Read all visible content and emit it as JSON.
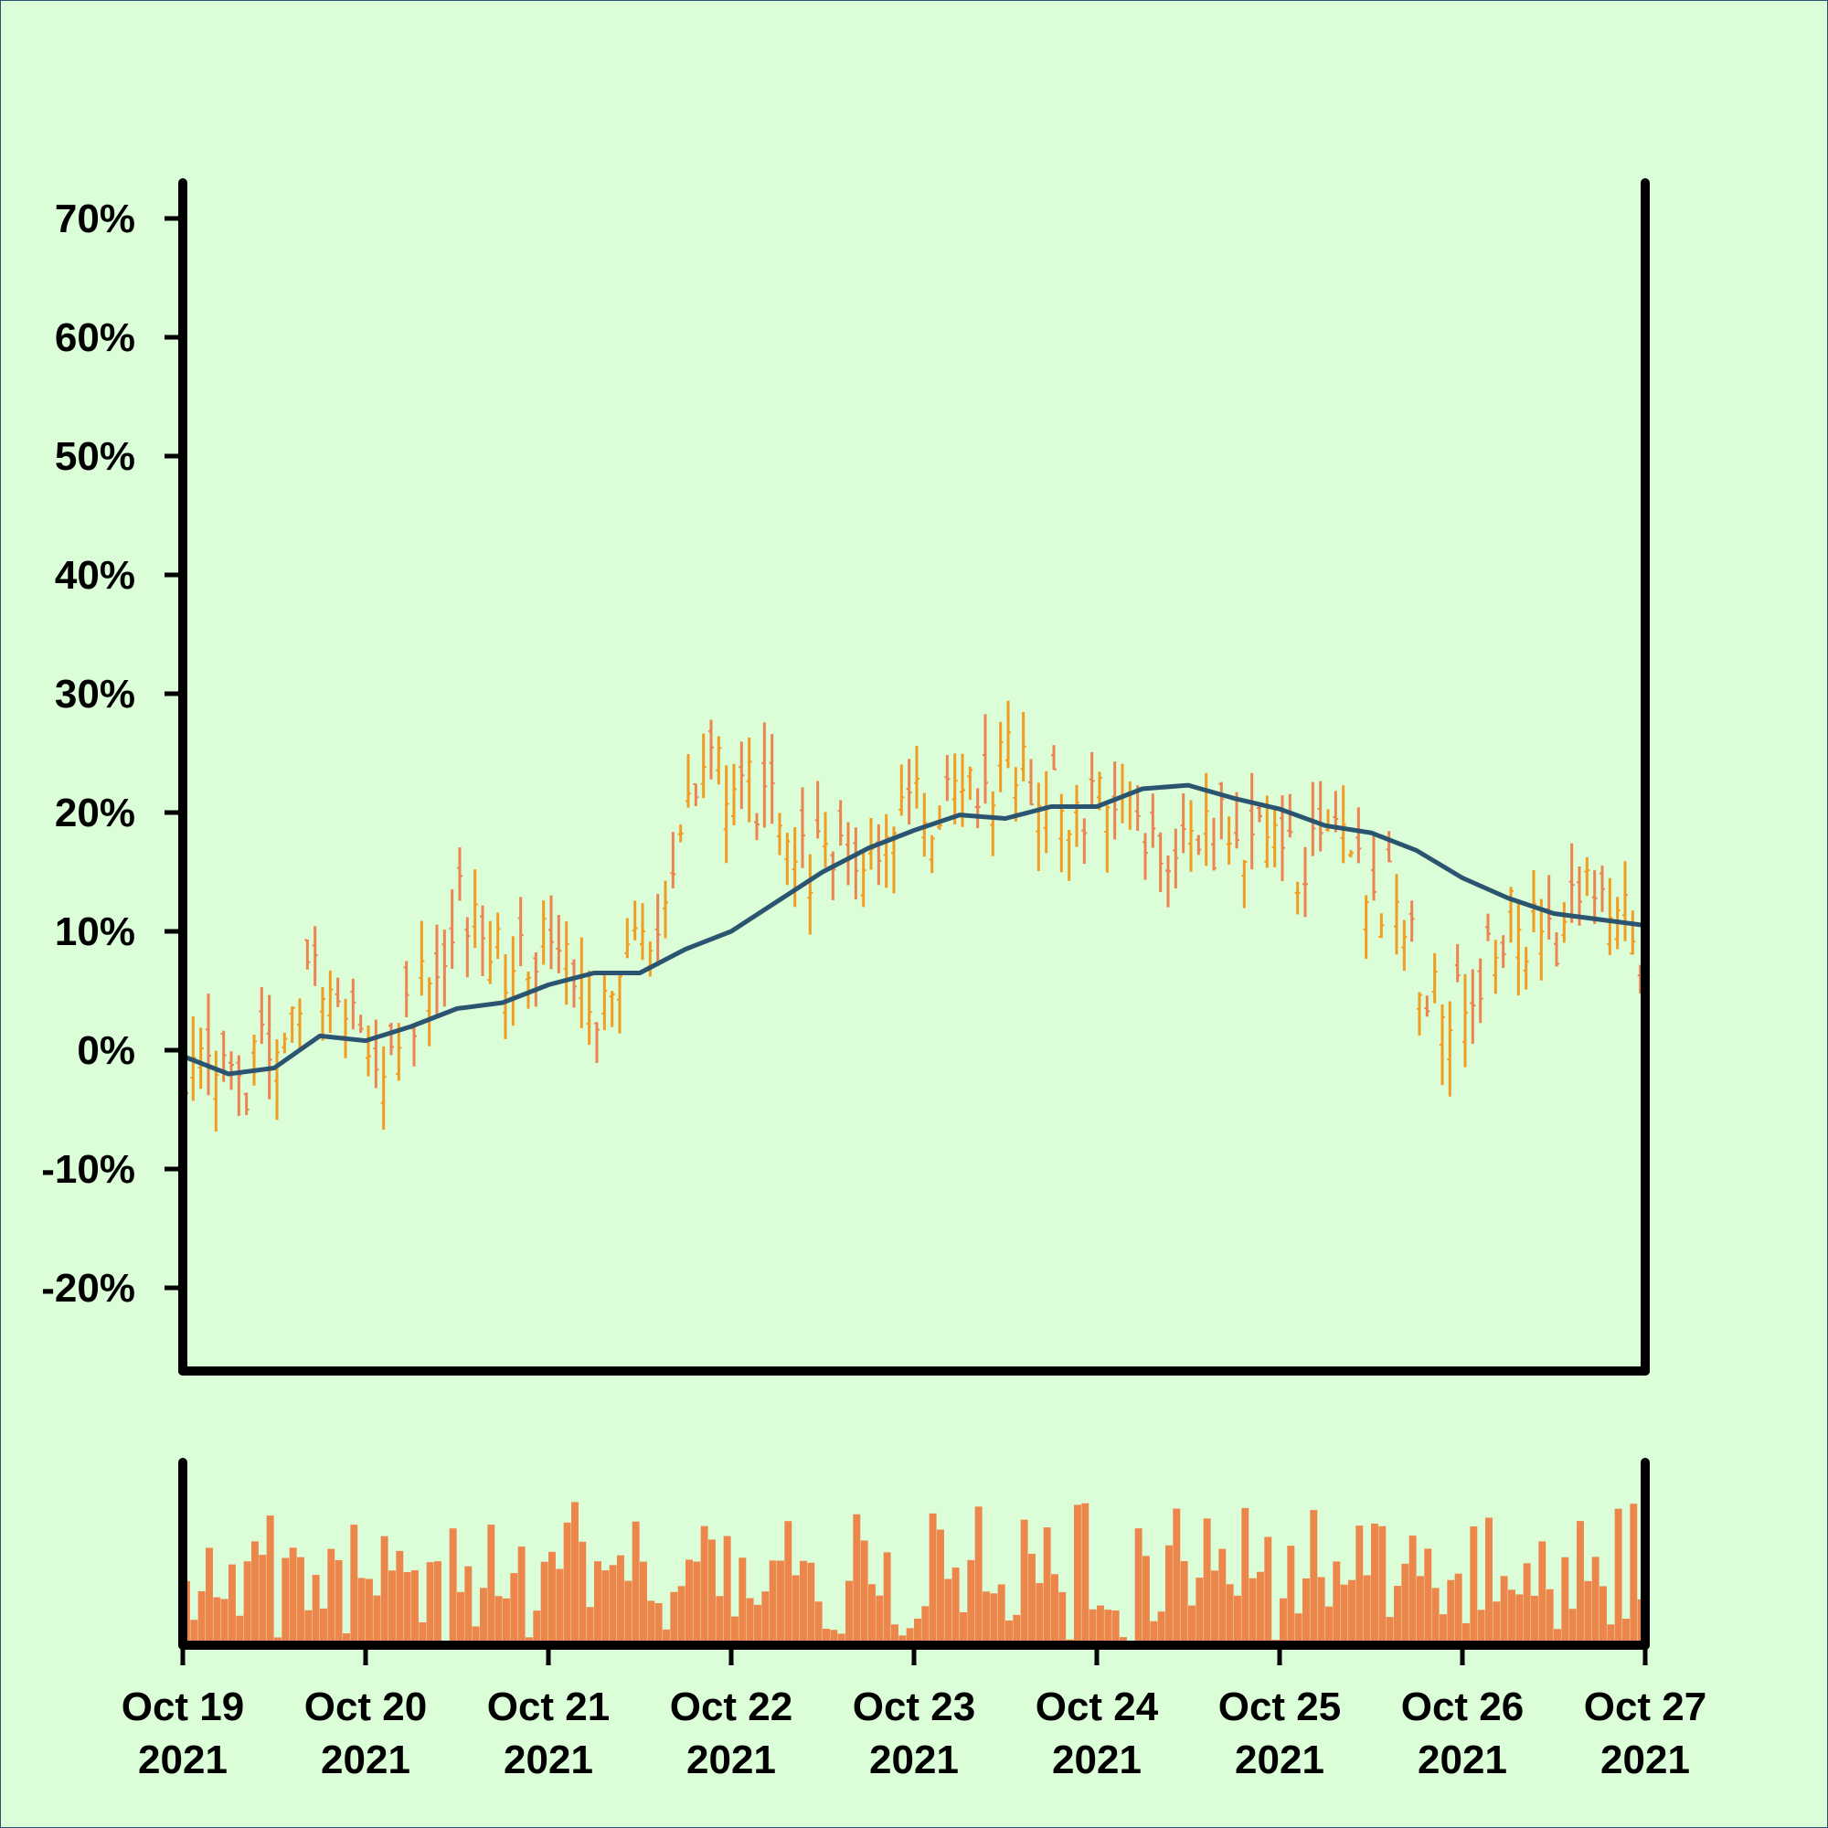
{
  "chart_data": {
    "type": "line",
    "title": "",
    "xlabel": "",
    "ylabel": "",
    "x_ticks": [
      {
        "date": "2021-10-19",
        "label": [
          "Oct 19",
          "2021"
        ]
      },
      {
        "date": "2021-10-20",
        "label": [
          "Oct 20",
          "2021"
        ]
      },
      {
        "date": "2021-10-21",
        "label": [
          "Oct 21",
          "2021"
        ]
      },
      {
        "date": "2021-10-22",
        "label": [
          "Oct 22",
          "2021"
        ]
      },
      {
        "date": "2021-10-23",
        "label": [
          "Oct 23",
          "2021"
        ]
      },
      {
        "date": "2021-10-24",
        "label": [
          "Oct 24",
          "2021"
        ]
      },
      {
        "date": "2021-10-25",
        "label": [
          "Oct 25",
          "2021"
        ]
      },
      {
        "date": "2021-10-26",
        "label": [
          "Oct 26",
          "2021"
        ]
      },
      {
        "date": "2021-10-27",
        "label": [
          "Oct 27",
          "2021"
        ]
      }
    ],
    "xlim": [
      "2021-10-19",
      "2021-10-27"
    ],
    "y_ticks": [
      {
        "value": 70,
        "label": "70%"
      },
      {
        "value": 60,
        "label": "60%"
      },
      {
        "value": 50,
        "label": "50%"
      },
      {
        "value": 40,
        "label": "40%"
      },
      {
        "value": 30,
        "label": "30%"
      },
      {
        "value": 20,
        "label": "20%"
      },
      {
        "value": 10,
        "label": "10%"
      },
      {
        "value": 0,
        "label": "0%"
      },
      {
        "value": -10,
        "label": "-10%"
      },
      {
        "value": -20,
        "label": "-20%"
      }
    ],
    "ylim": [
      -27,
      73
    ],
    "grid": false,
    "ohlc_series": {
      "interval_hours": 1,
      "colors": {
        "up": "#f29d22",
        "down": "#ec8450"
      },
      "anchors": [
        {
          "time": "2021-10-19T00:00",
          "value": -1
        },
        {
          "time": "2021-10-19T08:00",
          "value": -2
        },
        {
          "time": "2021-10-19T16:00",
          "value": 5
        },
        {
          "time": "2021-10-19T20:00",
          "value": 6
        },
        {
          "time": "2021-10-20T02:00",
          "value": -2
        },
        {
          "time": "2021-10-20T08:00",
          "value": 6
        },
        {
          "time": "2021-10-20T12:00",
          "value": 13
        },
        {
          "time": "2021-10-20T18:00",
          "value": 7
        },
        {
          "time": "2021-10-21T00:00",
          "value": 10
        },
        {
          "time": "2021-10-21T06:00",
          "value": 3
        },
        {
          "time": "2021-10-21T10:00",
          "value": 11
        },
        {
          "time": "2021-10-21T14:00",
          "value": 10
        },
        {
          "time": "2021-10-21T20:00",
          "value": 23
        },
        {
          "time": "2021-10-22T04:00",
          "value": 21
        },
        {
          "time": "2021-10-22T09:00",
          "value": 16
        },
        {
          "time": "2021-10-22T16:00",
          "value": 17
        },
        {
          "time": "2021-10-22T21:00",
          "value": 20
        },
        {
          "time": "2021-10-23T04:00",
          "value": 20
        },
        {
          "time": "2021-10-23T12:00",
          "value": 24
        },
        {
          "time": "2021-10-23T18:00",
          "value": 21
        },
        {
          "time": "2021-10-24T00:00",
          "value": 20
        },
        {
          "time": "2021-10-24T05:00",
          "value": 19
        },
        {
          "time": "2021-10-24T12:00",
          "value": 17
        },
        {
          "time": "2021-10-24T18:00",
          "value": 19
        },
        {
          "time": "2021-10-25T02:00",
          "value": 15
        },
        {
          "time": "2021-10-25T06:00",
          "value": 17
        },
        {
          "time": "2021-10-25T14:00",
          "value": 13
        },
        {
          "time": "2021-10-25T20:00",
          "value": 4
        },
        {
          "time": "2021-10-26T02:00",
          "value": 6
        },
        {
          "time": "2021-10-26T06:00",
          "value": 11
        },
        {
          "time": "2021-10-26T12:00",
          "value": 9
        },
        {
          "time": "2021-10-26T16:00",
          "value": 14
        },
        {
          "time": "2021-10-27T00:00",
          "value": 8
        }
      ]
    },
    "moving_average": {
      "color": "#2b5470",
      "points": [
        {
          "time": "2021-10-19T00:00",
          "value": -0.5
        },
        {
          "time": "2021-10-19T06:00",
          "value": -2
        },
        {
          "time": "2021-10-19T12:00",
          "value": -1.5
        },
        {
          "time": "2021-10-19T18:00",
          "value": 1.2
        },
        {
          "time": "2021-10-20T00:00",
          "value": 0.8
        },
        {
          "time": "2021-10-20T06:00",
          "value": 2
        },
        {
          "time": "2021-10-20T12:00",
          "value": 3.5
        },
        {
          "time": "2021-10-20T18:00",
          "value": 4
        },
        {
          "time": "2021-10-21T00:00",
          "value": 5.5
        },
        {
          "time": "2021-10-21T06:00",
          "value": 6.5
        },
        {
          "time": "2021-10-21T12:00",
          "value": 6.5
        },
        {
          "time": "2021-10-21T18:00",
          "value": 8.5
        },
        {
          "time": "2021-10-22T00:00",
          "value": 10
        },
        {
          "time": "2021-10-22T06:00",
          "value": 12.5
        },
        {
          "time": "2021-10-22T12:00",
          "value": 15
        },
        {
          "time": "2021-10-22T18:00",
          "value": 17
        },
        {
          "time": "2021-10-23T00:00",
          "value": 18.5
        },
        {
          "time": "2021-10-23T06:00",
          "value": 19.8
        },
        {
          "time": "2021-10-23T12:00",
          "value": 19.5
        },
        {
          "time": "2021-10-23T18:00",
          "value": 20.5
        },
        {
          "time": "2021-10-24T00:00",
          "value": 20.5
        },
        {
          "time": "2021-10-24T06:00",
          "value": 22
        },
        {
          "time": "2021-10-24T12:00",
          "value": 22.3
        },
        {
          "time": "2021-10-24T18:00",
          "value": 21.2
        },
        {
          "time": "2021-10-25T00:00",
          "value": 20.3
        },
        {
          "time": "2021-10-25T06:00",
          "value": 18.9
        },
        {
          "time": "2021-10-25T12:00",
          "value": 18.3
        },
        {
          "time": "2021-10-25T18:00",
          "value": 16.8
        },
        {
          "time": "2021-10-26T00:00",
          "value": 14.5
        },
        {
          "time": "2021-10-26T06:00",
          "value": 12.8
        },
        {
          "time": "2021-10-26T12:00",
          "value": 11.5
        },
        {
          "time": "2021-10-26T18:00",
          "value": 11
        },
        {
          "time": "2021-10-27T00:00",
          "value": 10.5
        }
      ]
    },
    "volume": {
      "color": "#ed864b",
      "relative_scale": [
        0,
        1
      ]
    }
  }
}
